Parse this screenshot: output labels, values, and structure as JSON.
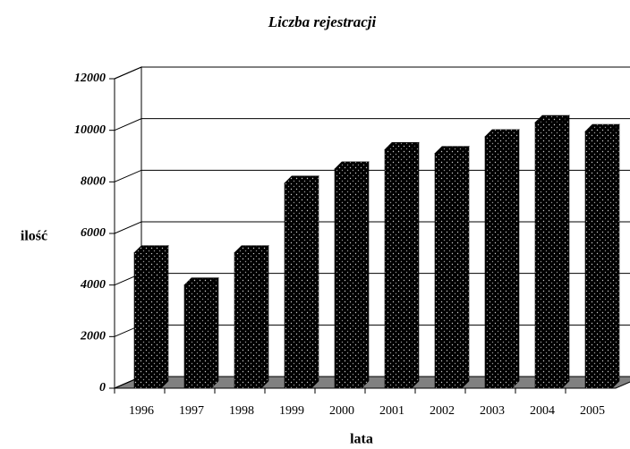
{
  "chart_data": {
    "type": "bar3d",
    "title": "Liczba  rejestracji",
    "y_label": "ilość",
    "x_label": "lata",
    "categories": [
      "1996",
      "1997",
      "1998",
      "1999",
      "2000",
      "2001",
      "2002",
      "2003",
      "2004",
      "2005"
    ],
    "values": [
      5250,
      4000,
      5250,
      7950,
      8500,
      9250,
      9100,
      9750,
      10300,
      9950
    ],
    "color": "#000000",
    "ylim": [
      0,
      12000
    ],
    "yticks": [
      0,
      2000,
      4000,
      6000,
      8000,
      10000,
      12000
    ],
    "grid": true
  }
}
